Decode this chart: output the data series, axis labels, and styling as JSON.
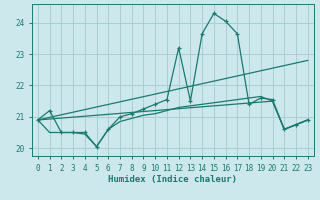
{
  "title": "",
  "xlabel": "Humidex (Indice chaleur)",
  "bg_color": "#cce8ed",
  "grid_color": "#aacdd4",
  "line_color": "#1a7a6e",
  "xlim": [
    -0.5,
    23.5
  ],
  "ylim": [
    19.75,
    24.6
  ],
  "yticks": [
    20,
    21,
    22,
    23,
    24
  ],
  "xticks": [
    0,
    1,
    2,
    3,
    4,
    5,
    6,
    7,
    8,
    9,
    10,
    11,
    12,
    13,
    14,
    15,
    16,
    17,
    18,
    19,
    20,
    21,
    22,
    23
  ],
  "lines": [
    {
      "x": [
        0,
        1,
        2,
        3,
        4,
        5,
        6,
        7,
        8,
        9,
        10,
        11,
        12,
        13,
        14,
        15,
        16,
        17,
        18,
        19,
        20,
        21,
        22,
        23
      ],
      "y": [
        20.9,
        21.2,
        20.5,
        20.5,
        20.5,
        20.05,
        20.6,
        21.0,
        21.1,
        21.25,
        21.4,
        21.55,
        23.2,
        21.5,
        23.65,
        24.3,
        24.05,
        23.65,
        21.4,
        21.6,
        21.55,
        20.6,
        20.75,
        20.9
      ],
      "marker": "+"
    },
    {
      "x": [
        0,
        23
      ],
      "y": [
        20.9,
        22.8
      ],
      "marker": null
    },
    {
      "x": [
        0,
        20,
        21,
        22,
        23
      ],
      "y": [
        20.9,
        21.5,
        20.6,
        20.75,
        20.9
      ],
      "marker": null
    },
    {
      "x": [
        0,
        1,
        2,
        3,
        4,
        5,
        6,
        7,
        8,
        9,
        10,
        11,
        12,
        13,
        14,
        15,
        16,
        17,
        18,
        19,
        20,
        21,
        22,
        23
      ],
      "y": [
        20.9,
        20.5,
        20.5,
        20.5,
        20.45,
        20.05,
        20.6,
        20.85,
        20.95,
        21.05,
        21.1,
        21.2,
        21.3,
        21.35,
        21.4,
        21.45,
        21.5,
        21.55,
        21.6,
        21.65,
        21.5,
        20.6,
        20.75,
        20.9
      ],
      "marker": null
    }
  ]
}
